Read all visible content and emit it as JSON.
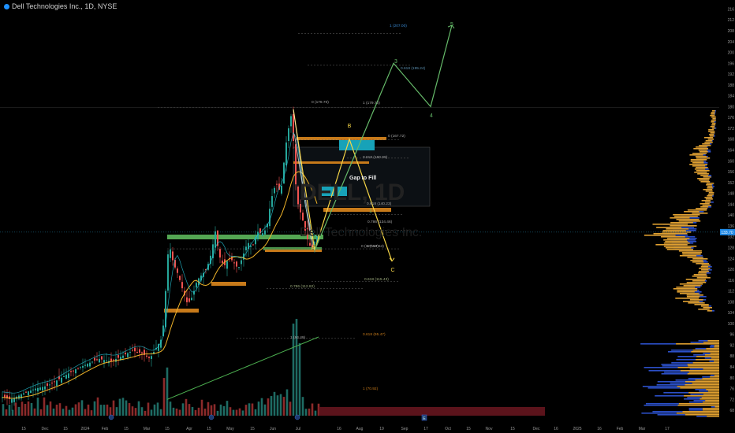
{
  "header": {
    "title": "Dell Technologies Inc., 1D, NYSE"
  },
  "watermark": {
    "ticker": "DELL, 1D",
    "name": "Dell Technologies Inc."
  },
  "annotations": {
    "gap_label": "Gap to Fill",
    "wave_labels": [
      "B",
      "A",
      "C",
      "1",
      "3",
      "4",
      "5"
    ],
    "fib_labels": [
      "1 (207.00)",
      "0.618 (195.24)",
      "0 (179.70)",
      "1 (179.70)",
      "0 (167.72)",
      "0.618 (160.99)",
      "0.618 (140.23)",
      "0.786 (134.46)",
      "0 (127.54)",
      "1 (127.54)",
      "0.618 (115.43)",
      "0.786 (112.82)",
      "1 (94.49)",
      "0.618 (95.47)",
      "1 (70.92)"
    ],
    "price_tag": "133.70",
    "event_icon": "E"
  },
  "colors": {
    "bg": "#000000",
    "up": "#26a69a",
    "down": "#ef5350",
    "wave_yellow": "#f5d547",
    "wave_green": "#66bb6a",
    "ema_orange": "#f0b429",
    "sma_green": "#4caf50",
    "zone_orange": "#c77a1a",
    "zone_green": "#5cb85c",
    "zone_cyan": "#17a2b8",
    "vp_orange": "#e0a030",
    "vp_blue": "#2b4fc7"
  },
  "chart_data": {
    "type": "candlestick",
    "title": "Dell Technologies Inc., 1D, NYSE",
    "yaxis_ticks": [
      216,
      212,
      208,
      204,
      200,
      196,
      192,
      188,
      184,
      180,
      176,
      172,
      168,
      164,
      160,
      156,
      152,
      148,
      144,
      140,
      136,
      132,
      128,
      124,
      120,
      116,
      112,
      108,
      104,
      100,
      96,
      92,
      88,
      84,
      80,
      76,
      72,
      68
    ],
    "ylim": [
      66,
      217
    ],
    "current_price": 133.7,
    "xaxis_ticks": [
      "15",
      "Dec",
      "15",
      "2024",
      "Feb",
      "15",
      "Mar",
      "15",
      "Apr",
      "15",
      "May",
      "15",
      "Jun",
      "Jul",
      "16",
      "Aug",
      "19",
      "Sep",
      "17",
      "Oct",
      "15",
      "Nov",
      "15",
      "Dec",
      "16",
      "2025",
      "16",
      "Feb",
      "Mar",
      "17"
    ],
    "price_path": [
      [
        0,
        73
      ],
      [
        14,
        72
      ],
      [
        28,
        74
      ],
      [
        45,
        76
      ],
      [
        60,
        77
      ],
      [
        78,
        80
      ],
      [
        95,
        83
      ],
      [
        110,
        85
      ],
      [
        125,
        87
      ],
      [
        140,
        86
      ],
      [
        155,
        88
      ],
      [
        168,
        90
      ],
      [
        180,
        89
      ],
      [
        190,
        87
      ],
      [
        200,
        92
      ],
      [
        206,
        95
      ],
      [
        210,
        112
      ],
      [
        214,
        130
      ],
      [
        220,
        122
      ],
      [
        226,
        118
      ],
      [
        232,
        112
      ],
      [
        238,
        107
      ],
      [
        244,
        110
      ],
      [
        250,
        116
      ],
      [
        256,
        118
      ],
      [
        262,
        120
      ],
      [
        268,
        126
      ],
      [
        273,
        134
      ],
      [
        278,
        125
      ],
      [
        284,
        121
      ],
      [
        290,
        124
      ],
      [
        296,
        123
      ],
      [
        302,
        120
      ],
      [
        308,
        125
      ],
      [
        314,
        130
      ],
      [
        320,
        128
      ],
      [
        326,
        134
      ],
      [
        332,
        133
      ],
      [
        338,
        135
      ],
      [
        344,
        146
      ],
      [
        350,
        152
      ],
      [
        356,
        148
      ],
      [
        362,
        165
      ],
      [
        366,
        172
      ],
      [
        370,
        178
      ],
      [
        373,
        162
      ],
      [
        376,
        146
      ],
      [
        380,
        142
      ],
      [
        384,
        138
      ],
      [
        388,
        133
      ],
      [
        392,
        129
      ],
      [
        396,
        128
      ],
      [
        400,
        131
      ],
      [
        404,
        133
      ]
    ],
    "wave_yellow": [
      [
        372,
        179
      ],
      [
        399,
        127
      ],
      [
        443,
        168
      ],
      [
        497,
        123
      ]
    ],
    "wave_green": [
      [
        399,
        127
      ],
      [
        499,
        196
      ],
      [
        546,
        180
      ],
      [
        573,
        210
      ]
    ],
    "volume_max": 100
  }
}
